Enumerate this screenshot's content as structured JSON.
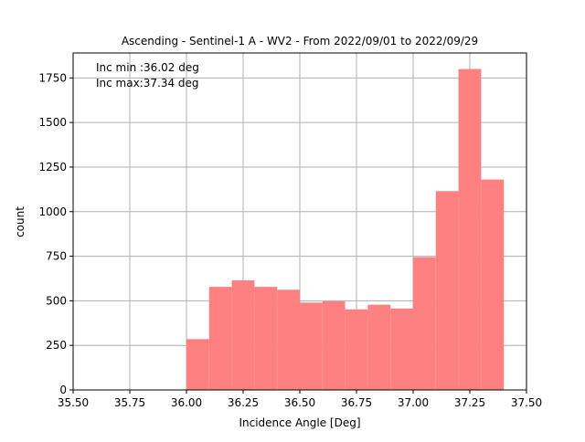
{
  "chart_data": {
    "type": "bar",
    "title": "Ascending - Sentinel-1 A - WV2 - From 2022/09/01 to 2022/09/29",
    "xlabel": "Incidence Angle [Deg]",
    "ylabel": "count",
    "xlim": [
      35.5,
      37.5
    ],
    "ylim": [
      0,
      1890
    ],
    "xticks": [
      "35.50",
      "35.75",
      "36.00",
      "36.25",
      "36.50",
      "36.75",
      "37.00",
      "37.25",
      "37.50"
    ],
    "yticks": [
      "0",
      "250",
      "500",
      "750",
      "1000",
      "1250",
      "1500",
      "1750"
    ],
    "grid": true,
    "bar_color": "#ff8080",
    "annotations": [
      "Inc min :36.02 deg",
      "Inc max:37.34 deg"
    ],
    "bins": [
      {
        "x0": 36.0,
        "x1": 36.1,
        "value": 285
      },
      {
        "x0": 36.1,
        "x1": 36.2,
        "value": 578
      },
      {
        "x0": 36.2,
        "x1": 36.3,
        "value": 615
      },
      {
        "x0": 36.3,
        "x1": 36.4,
        "value": 578
      },
      {
        "x0": 36.4,
        "x1": 36.5,
        "value": 562
      },
      {
        "x0": 36.5,
        "x1": 36.6,
        "value": 490
      },
      {
        "x0": 36.6,
        "x1": 36.7,
        "value": 498
      },
      {
        "x0": 36.7,
        "x1": 36.8,
        "value": 452
      },
      {
        "x0": 36.8,
        "x1": 36.9,
        "value": 478
      },
      {
        "x0": 36.9,
        "x1": 37.0,
        "value": 457
      },
      {
        "x0": 37.0,
        "x1": 37.1,
        "value": 745
      },
      {
        "x0": 37.1,
        "x1": 37.2,
        "value": 1115
      },
      {
        "x0": 37.2,
        "x1": 37.3,
        "value": 1800
      },
      {
        "x0": 37.3,
        "x1": 37.4,
        "value": 1180
      }
    ]
  }
}
